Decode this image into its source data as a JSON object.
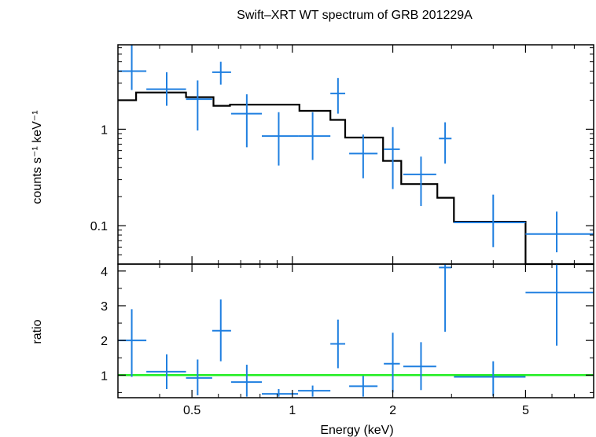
{
  "chart_data": {
    "type": "scatter",
    "title": "Swift–XRT WT spectrum of GRB 201229A",
    "xlabel": "Energy (keV)",
    "x_scale": "log",
    "xlim": [
      0.3,
      8.0
    ],
    "x_ticks": [
      {
        "value": 0.5,
        "label": "0.5"
      },
      {
        "value": 1,
        "label": "1"
      },
      {
        "value": 2,
        "label": "2"
      },
      {
        "value": 5,
        "label": "5"
      }
    ],
    "panels": [
      {
        "name": "spectrum",
        "ylabel": "counts s⁻¹ keV⁻¹",
        "y_scale": "log",
        "ylim": [
          0.04,
          7.5
        ],
        "y_ticks": [
          {
            "value": 0.1,
            "label": "0.1"
          },
          {
            "value": 1,
            "label": "1"
          }
        ],
        "colors": {
          "data": "#1f7fe0",
          "model": "#000000"
        },
        "data_points": [
          {
            "x": 0.33,
            "xlo": 0.3,
            "xhi": 0.365,
            "y": 4.0,
            "ylo": 2.55,
            "yhi": 7.5
          },
          {
            "x": 0.42,
            "xlo": 0.365,
            "xhi": 0.48,
            "y": 2.6,
            "ylo": 1.75,
            "yhi": 3.9
          },
          {
            "x": 0.52,
            "xlo": 0.48,
            "xhi": 0.575,
            "y": 2.05,
            "ylo": 0.97,
            "yhi": 3.2
          },
          {
            "x": 0.61,
            "xlo": 0.575,
            "xhi": 0.655,
            "y": 3.9,
            "ylo": 2.9,
            "yhi": 5.0
          },
          {
            "x": 0.73,
            "xlo": 0.655,
            "xhi": 0.81,
            "y": 1.45,
            "ylo": 0.65,
            "yhi": 2.3
          },
          {
            "x": 0.91,
            "xlo": 0.81,
            "xhi": 1.04,
            "y": 0.85,
            "ylo": 0.42,
            "yhi": 1.5
          },
          {
            "x": 1.15,
            "xlo": 1.04,
            "xhi": 1.3,
            "y": 0.85,
            "ylo": 0.48,
            "yhi": 1.5
          },
          {
            "x": 1.37,
            "xlo": 1.3,
            "xhi": 1.44,
            "y": 2.35,
            "ylo": 1.45,
            "yhi": 3.4
          },
          {
            "x": 1.63,
            "xlo": 1.48,
            "xhi": 1.8,
            "y": 0.56,
            "ylo": 0.31,
            "yhi": 0.88
          },
          {
            "x": 2.0,
            "xlo": 1.88,
            "xhi": 2.1,
            "y": 0.62,
            "ylo": 0.24,
            "yhi": 1.05
          },
          {
            "x": 2.43,
            "xlo": 2.15,
            "xhi": 2.7,
            "y": 0.34,
            "ylo": 0.16,
            "yhi": 0.52
          },
          {
            "x": 2.87,
            "xlo": 2.75,
            "xhi": 3.0,
            "y": 0.8,
            "ylo": 0.44,
            "yhi": 1.18
          },
          {
            "x": 4.0,
            "xlo": 3.05,
            "xhi": 5.0,
            "y": 0.108,
            "ylo": 0.06,
            "yhi": 0.21
          },
          {
            "x": 6.2,
            "xlo": 5.0,
            "xhi": 8.0,
            "y": 0.082,
            "ylo": 0.053,
            "yhi": 0.14
          }
        ],
        "model_steps": [
          {
            "x0": 0.3,
            "x1": 0.34,
            "y": 2.0
          },
          {
            "x0": 0.34,
            "x1": 0.48,
            "y": 2.4
          },
          {
            "x0": 0.48,
            "x1": 0.58,
            "y": 2.15
          },
          {
            "x0": 0.58,
            "x1": 0.65,
            "y": 1.75
          },
          {
            "x0": 0.65,
            "x1": 1.05,
            "y": 1.8
          },
          {
            "x0": 1.05,
            "x1": 1.3,
            "y": 1.55
          },
          {
            "x0": 1.3,
            "x1": 1.44,
            "y": 1.25
          },
          {
            "x0": 1.44,
            "x1": 1.87,
            "y": 0.82
          },
          {
            "x0": 1.87,
            "x1": 2.12,
            "y": 0.47
          },
          {
            "x0": 2.12,
            "x1": 2.72,
            "y": 0.27
          },
          {
            "x0": 2.72,
            "x1": 3.05,
            "y": 0.195
          },
          {
            "x0": 3.05,
            "x1": 5.0,
            "y": 0.11
          },
          {
            "x0": 5.0,
            "x1": 8.0,
            "y": 0.04
          }
        ]
      },
      {
        "name": "ratio",
        "ylabel": "ratio",
        "y_scale": "linear",
        "ylim": [
          0.35,
          4.2
        ],
        "y_ticks": [
          {
            "value": 1,
            "label": "1"
          },
          {
            "value": 2,
            "label": "2"
          },
          {
            "value": 3,
            "label": "3"
          },
          {
            "value": 4,
            "label": "4"
          }
        ],
        "reference_line": {
          "y": 1,
          "color": "#22ee22"
        },
        "colors": {
          "data": "#1f7fe0"
        },
        "data_points": [
          {
            "x": 0.33,
            "xlo": 0.3,
            "xhi": 0.365,
            "y": 2.0,
            "ylo": 0.95,
            "yhi": 2.9
          },
          {
            "x": 0.42,
            "xlo": 0.365,
            "xhi": 0.48,
            "y": 1.1,
            "ylo": 0.6,
            "yhi": 1.6
          },
          {
            "x": 0.52,
            "xlo": 0.48,
            "xhi": 0.575,
            "y": 0.92,
            "ylo": 0.42,
            "yhi": 1.45
          },
          {
            "x": 0.61,
            "xlo": 0.575,
            "xhi": 0.655,
            "y": 2.28,
            "ylo": 1.4,
            "yhi": 3.18
          },
          {
            "x": 0.73,
            "xlo": 0.655,
            "xhi": 0.81,
            "y": 0.8,
            "ylo": 0.38,
            "yhi": 1.3
          },
          {
            "x": 0.91,
            "xlo": 0.81,
            "xhi": 1.04,
            "y": 0.46,
            "ylo": 0.38,
            "yhi": 0.6
          },
          {
            "x": 1.15,
            "xlo": 1.04,
            "xhi": 1.3,
            "y": 0.55,
            "ylo": 0.38,
            "yhi": 0.7
          },
          {
            "x": 1.37,
            "xlo": 1.3,
            "xhi": 1.44,
            "y": 1.9,
            "ylo": 1.2,
            "yhi": 2.6
          },
          {
            "x": 1.63,
            "xlo": 1.48,
            "xhi": 1.8,
            "y": 0.68,
            "ylo": 0.38,
            "yhi": 0.98
          },
          {
            "x": 2.0,
            "xlo": 1.88,
            "xhi": 2.1,
            "y": 1.33,
            "ylo": 0.5,
            "yhi": 2.22
          },
          {
            "x": 2.43,
            "xlo": 2.15,
            "xhi": 2.7,
            "y": 1.25,
            "ylo": 0.57,
            "yhi": 1.95
          },
          {
            "x": 2.87,
            "xlo": 2.75,
            "xhi": 3.0,
            "y": 4.1,
            "ylo": 2.25,
            "yhi": 4.2
          },
          {
            "x": 4.0,
            "xlo": 3.05,
            "xhi": 5.0,
            "y": 0.95,
            "ylo": 0.4,
            "yhi": 1.4
          },
          {
            "x": 6.2,
            "xlo": 5.0,
            "xhi": 8.0,
            "y": 3.38,
            "ylo": 1.85,
            "yhi": 4.2
          }
        ]
      }
    ]
  }
}
